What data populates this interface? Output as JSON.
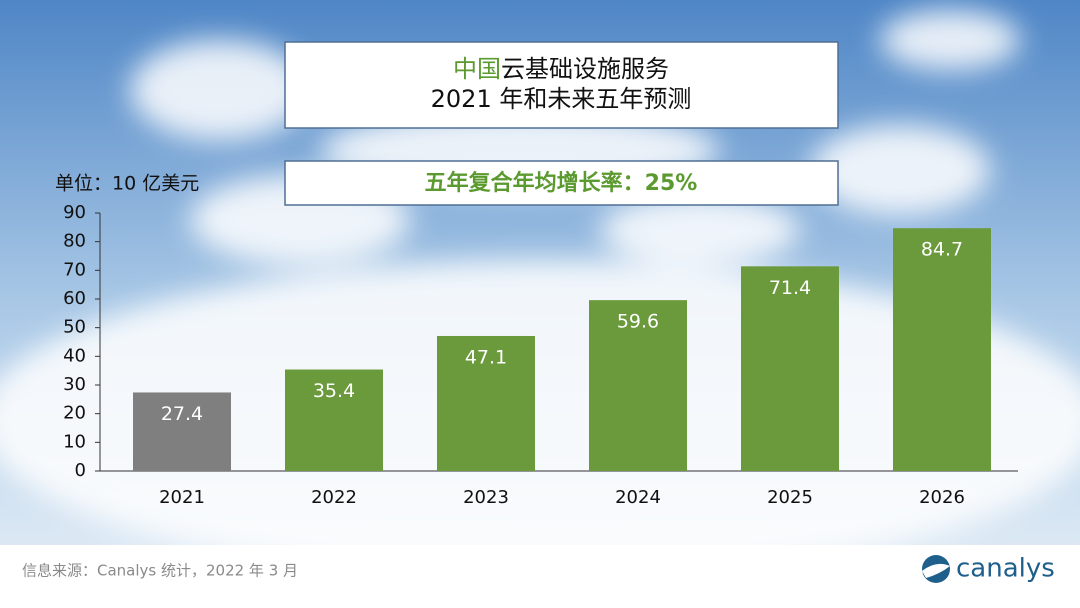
{
  "chart_data": {
    "type": "bar",
    "title_highlight": "中国",
    "title_rest": "云基础设施服务",
    "subtitle": "2021 年和未来五年预测",
    "annotation": "五年复合年均增长率：25%",
    "y_axis_label": "单位：10 亿美元",
    "categories": [
      "2021",
      "2022",
      "2023",
      "2024",
      "2025",
      "2026"
    ],
    "values": [
      27.4,
      35.4,
      47.1,
      59.6,
      71.4,
      84.7
    ],
    "colors": [
      "#7f7f7f",
      "#6b9a3c",
      "#6b9a3c",
      "#6b9a3c",
      "#6b9a3c",
      "#6b9a3c"
    ],
    "ylim": [
      0,
      90
    ],
    "yticks": [
      0,
      10,
      20,
      30,
      40,
      50,
      60,
      70,
      80,
      90
    ],
    "source": "信息来源：Canalys 统计，2022 年 3 月",
    "logo": "canalys"
  }
}
